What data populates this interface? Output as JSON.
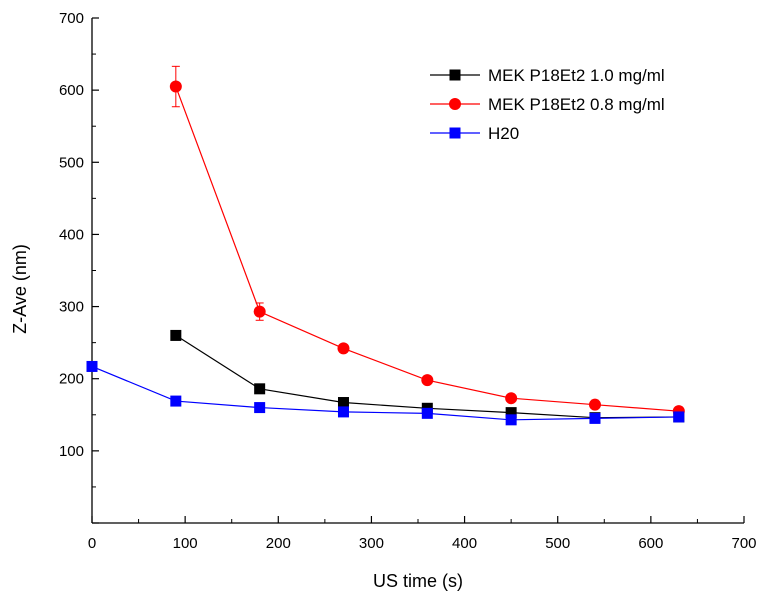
{
  "chart_data": {
    "type": "line",
    "xlabel": "US time (s)",
    "ylabel": "Z-Ave (nm)",
    "xlim": [
      0,
      700
    ],
    "ylim": [
      0,
      700
    ],
    "x_ticks": [
      0,
      100,
      200,
      300,
      400,
      500,
      600,
      700
    ],
    "y_ticks": [
      100,
      200,
      300,
      400,
      500,
      600,
      700
    ],
    "grid": false,
    "legend_position": "top-right",
    "series": [
      {
        "name": "MEK P18Et2 1.0 mg/ml",
        "color": "#000000",
        "marker": "square",
        "x": [
          90,
          180,
          270,
          360,
          450,
          540,
          630
        ],
        "y": [
          260,
          186,
          167,
          159,
          153,
          146,
          147
        ]
      },
      {
        "name": "MEK P18Et2 0.8 mg/ml",
        "color": "#ff0000",
        "marker": "circle",
        "x": [
          90,
          180,
          270,
          360,
          450,
          540,
          630
        ],
        "y": [
          605,
          293,
          242,
          198,
          173,
          164,
          155
        ],
        "error": [
          28,
          12,
          0,
          0,
          0,
          0,
          0
        ]
      },
      {
        "name": "H20",
        "color": "#0000ff",
        "marker": "square",
        "x": [
          0,
          90,
          180,
          270,
          360,
          450,
          540,
          630
        ],
        "y": [
          217,
          169,
          160,
          154,
          152,
          143,
          145,
          147
        ]
      }
    ]
  }
}
